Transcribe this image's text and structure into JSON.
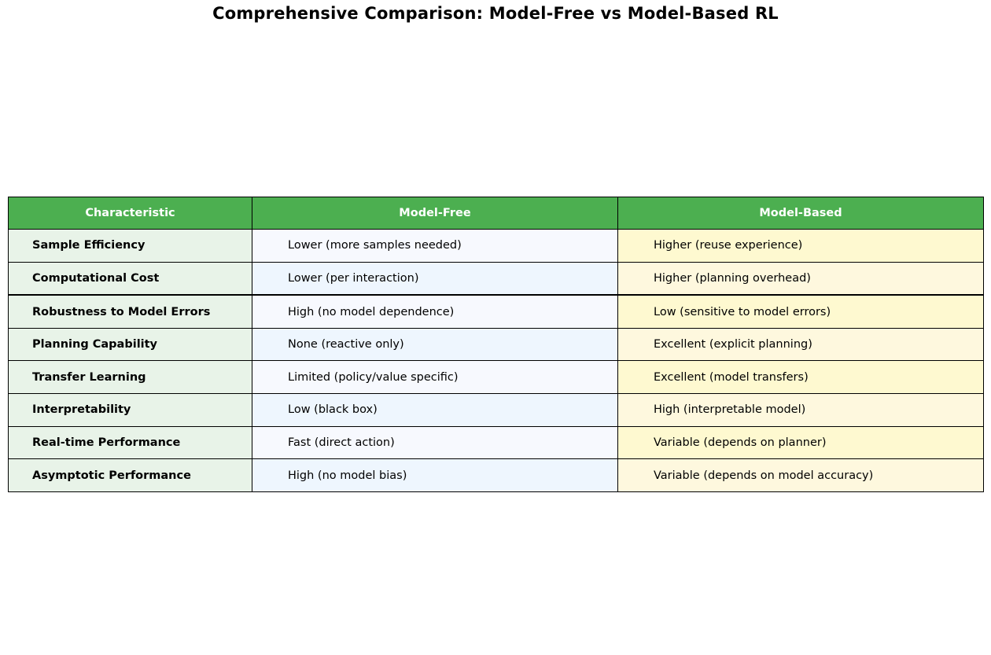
{
  "colors": {
    "header_bg": "#4caf50",
    "header_text": "#ffffff",
    "characteristic_bg": "#e8f3e8",
    "model_free_bg_odd": "#f7f9fe",
    "model_free_bg_even": "#eef6fe",
    "model_based_bg_odd": "#fef9d0",
    "model_based_bg_even": "#fef8de"
  },
  "chart_data": {
    "type": "table",
    "title": "Comprehensive Comparison: Model-Free vs Model-Based RL",
    "columns": [
      "Characteristic",
      "Model-Free",
      "Model-Based"
    ],
    "rows": [
      [
        "Sample Efficiency",
        "Lower (more samples needed)",
        "Higher (reuse experience)"
      ],
      [
        "Computational Cost",
        "Lower (per interaction)",
        "Higher (planning overhead)"
      ],
      [
        "Robustness to Model Errors",
        "High (no model dependence)",
        "Low (sensitive to model errors)"
      ],
      [
        "Planning Capability",
        "None (reactive only)",
        "Excellent (explicit planning)"
      ],
      [
        "Transfer Learning",
        "Limited (policy/value specific)",
        "Excellent (model transfers)"
      ],
      [
        "Interpretability",
        "Low (black box)",
        "High (interpretable model)"
      ],
      [
        "Real-time Performance",
        "Fast (direct action)",
        "Variable (depends on planner)"
      ],
      [
        "Asymptotic Performance",
        "High (no model bias)",
        "Variable (depends on model accuracy)"
      ]
    ]
  }
}
